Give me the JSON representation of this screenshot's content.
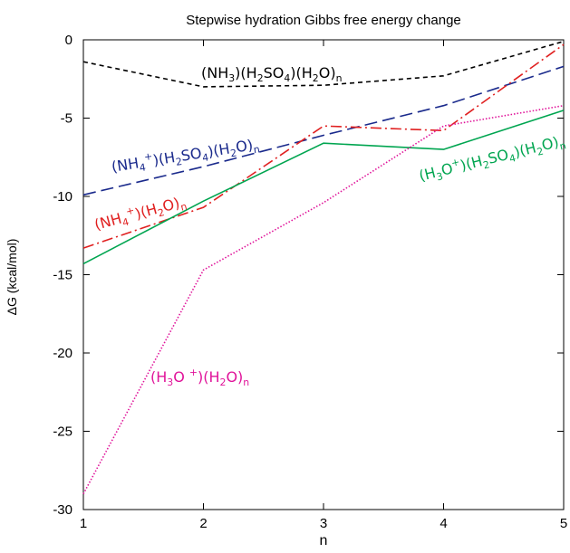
{
  "chart_data": {
    "type": "line",
    "title": "Stepwise hydration Gibbs free energy change",
    "xlabel": "n",
    "ylabel": "ΔG (kcal/mol)",
    "x": [
      1,
      2,
      3,
      4,
      5
    ],
    "xlim": [
      1,
      5
    ],
    "ylim": [
      -30,
      0
    ],
    "xticks": [
      "1",
      "2",
      "3",
      "4",
      "5"
    ],
    "yticks": [
      "0",
      "-5",
      "-10",
      "-15",
      "-20",
      "-25",
      "-30"
    ],
    "grid": false,
    "legend": "none",
    "series": [
      {
        "key": "nh3",
        "label_parts": [
          "(NH",
          "3",
          ")(H",
          "2",
          "SO",
          "4",
          ")(H",
          "2",
          "O)",
          "n"
        ],
        "values": [
          -1.4,
          -3.0,
          -2.9,
          -2.3,
          -0.1
        ],
        "color": "#000000"
      },
      {
        "key": "nh4_h2so4",
        "label_parts": [
          "(NH",
          "4",
          "+",
          ")(H",
          "2",
          "SO",
          "4",
          ")(H",
          "2",
          "O)",
          "n"
        ],
        "values": [
          -9.9,
          -8.1,
          -6.1,
          -4.2,
          -1.7
        ],
        "color": "#1a2a8c"
      },
      {
        "key": "nh4",
        "label_parts": [
          "(NH",
          "4",
          "+",
          ")(H",
          "2",
          "O)",
          "n"
        ],
        "values": [
          -13.3,
          -10.7,
          -5.5,
          -5.8,
          -0.3
        ],
        "color": "#e02020"
      },
      {
        "key": "h3o_h2so4",
        "label_parts": [
          "(H",
          "3",
          "O",
          "+",
          ")(H",
          "2",
          "SO",
          "4",
          ")(H",
          "2",
          "O)",
          "n"
        ],
        "values": [
          -14.3,
          -10.3,
          -6.6,
          -7.0,
          -4.5
        ],
        "color": "#00a550"
      },
      {
        "key": "h3o",
        "label_parts": [
          "(H",
          "3",
          "O ",
          "+",
          ")(H",
          "2",
          "O)",
          "n"
        ],
        "values": [
          -29.0,
          -14.7,
          -10.4,
          -5.5,
          -4.2
        ],
        "color": "#e0149a"
      }
    ]
  }
}
